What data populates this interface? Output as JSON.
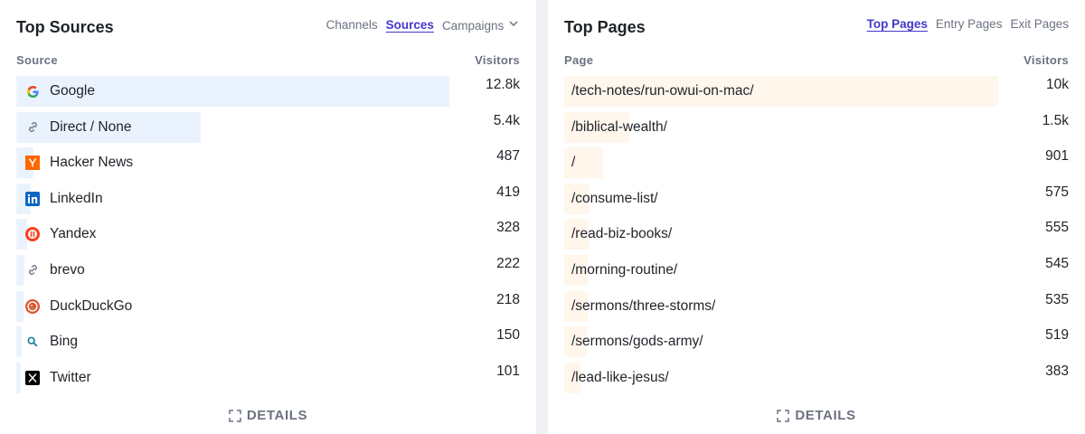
{
  "sources": {
    "title": "Top Sources",
    "tabs": [
      "Channels",
      "Sources",
      "Campaigns"
    ],
    "active_tab": 1,
    "col_label": "Source",
    "col_value": "Visitors",
    "details": "DETAILS",
    "rows": [
      {
        "label": "Google",
        "value": "12.8k",
        "icon": "google-icon",
        "fraction": 1.0
      },
      {
        "label": "Direct / None",
        "value": "5.4k",
        "icon": "link-icon",
        "fraction": 0.425
      },
      {
        "label": "Hacker News",
        "value": "487",
        "icon": "hacker-news-icon",
        "fraction": 0.04
      },
      {
        "label": "LinkedIn",
        "value": "419",
        "icon": "linkedin-icon",
        "fraction": 0.033
      },
      {
        "label": "Yandex",
        "value": "328",
        "icon": "yandex-icon",
        "fraction": 0.026
      },
      {
        "label": "brevo",
        "value": "222",
        "icon": "link-icon",
        "fraction": 0.018
      },
      {
        "label": "DuckDuckGo",
        "value": "218",
        "icon": "duckduckgo-icon",
        "fraction": 0.017
      },
      {
        "label": "Bing",
        "value": "150",
        "icon": "bing-search-icon",
        "fraction": 0.012
      },
      {
        "label": "Twitter",
        "value": "101",
        "icon": "x-twitter-icon",
        "fraction": 0.008
      }
    ]
  },
  "pages": {
    "title": "Top Pages",
    "tabs": [
      "Top Pages",
      "Entry Pages",
      "Exit Pages"
    ],
    "active_tab": 0,
    "col_label": "Page",
    "col_value": "Visitors",
    "details": "DETAILS",
    "rows": [
      {
        "label": "/tech-notes/run-owui-on-mac/",
        "value": "10k",
        "fraction": 1.0
      },
      {
        "label": "/biblical-wealth/",
        "value": "1.5k",
        "fraction": 0.15
      },
      {
        "label": "/",
        "value": "901",
        "fraction": 0.09
      },
      {
        "label": "/consume-list/",
        "value": "575",
        "fraction": 0.058
      },
      {
        "label": "/read-biz-books/",
        "value": "555",
        "fraction": 0.056
      },
      {
        "label": "/morning-routine/",
        "value": "545",
        "fraction": 0.055
      },
      {
        "label": "/sermons/three-storms/",
        "value": "535",
        "fraction": 0.054
      },
      {
        "label": "/sermons/gods-army/",
        "value": "519",
        "fraction": 0.052
      },
      {
        "label": "/lead-like-jesus/",
        "value": "383",
        "fraction": 0.038
      }
    ]
  }
}
